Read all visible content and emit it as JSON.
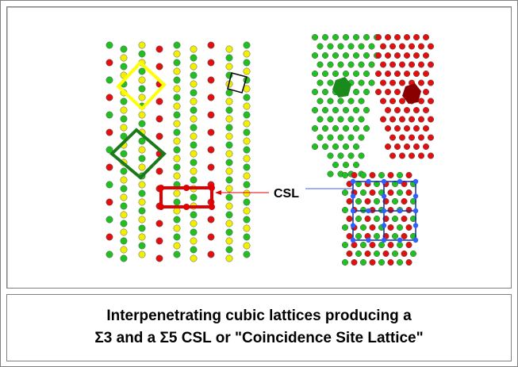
{
  "label": "CSL",
  "caption": [
    "Interpenetrating cubic lattices producing a",
    "Σ3 and a Σ5 CSL or \"Coincidence Site Lattice\""
  ]
}
